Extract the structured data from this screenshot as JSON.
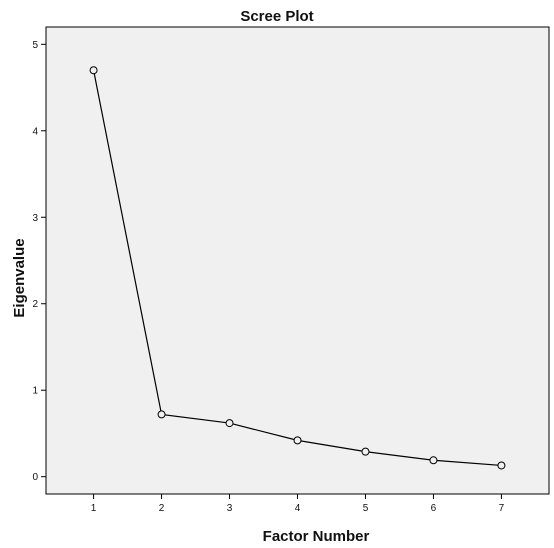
{
  "chart_data": {
    "type": "line",
    "title": "Scree Plot",
    "xlabel": "Factor Number",
    "ylabel": "Eigenvalue",
    "x": [
      1,
      2,
      3,
      4,
      5,
      6,
      7
    ],
    "series": [
      {
        "values": [
          4.7,
          0.72,
          0.62,
          0.42,
          0.29,
          0.19,
          0.13
        ]
      }
    ],
    "xlim": [
      0.3,
      7.7
    ],
    "ylim": [
      -0.2,
      5.2
    ],
    "xticks": [
      1,
      2,
      3,
      4,
      5,
      6,
      7
    ],
    "yticks": [
      0,
      1,
      2,
      3,
      4,
      5
    ],
    "grid": false,
    "colors": {
      "plot_background": "#f0f0f0",
      "line": "#000000",
      "marker": "#000000"
    },
    "marker": "open-circle"
  }
}
